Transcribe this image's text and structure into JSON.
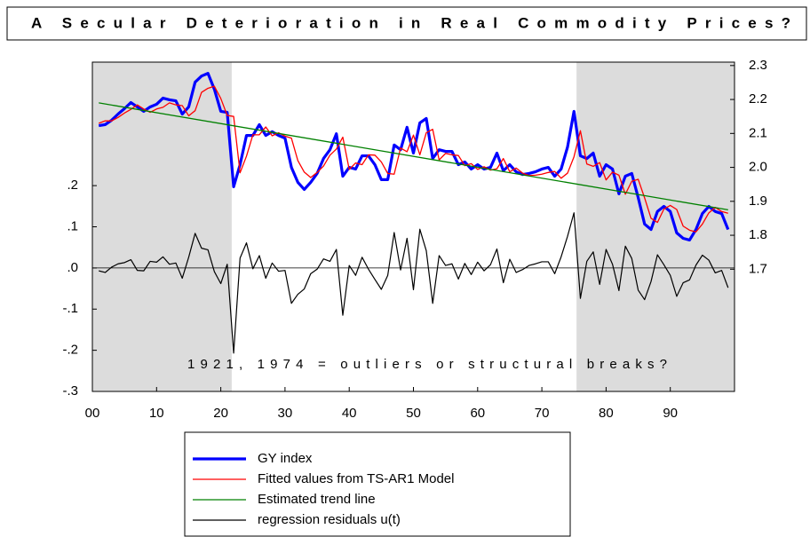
{
  "chart_data": {
    "type": "line",
    "title": "A Secular Deterioration in Real Commodity Prices?",
    "annotation": "1921, 1974 = outliers or structural breaks?",
    "shaded_regions": [
      [
        0,
        21.7
      ],
      [
        75.4,
        100
      ]
    ],
    "shade_color": "#dcdcdc",
    "xlim": [
      0,
      100
    ],
    "xticks": [
      {
        "value": 0,
        "label": "00"
      },
      10,
      20,
      30,
      40,
      50,
      60,
      70,
      80,
      90
    ],
    "ylim": [
      -0.3,
      0.5
    ],
    "yticks": [
      {
        "value": -0.3,
        "label": "-.3"
      },
      {
        "value": -0.2,
        "label": "-.2"
      },
      {
        "value": -0.1,
        "label": "-.1"
      },
      {
        "value": 0,
        "label": ".0"
      },
      {
        "value": 0.1,
        "label": ".1"
      },
      {
        "value": 0.2,
        "label": ".2"
      }
    ],
    "y2lim": [
      1.34,
      2.31
    ],
    "y2ticks": [
      1.7,
      1.8,
      1.9,
      {
        "value": 2,
        "label": "2.0"
      },
      2.1,
      2.2,
      2.3
    ],
    "x": [
      1,
      2,
      3,
      4,
      5,
      6,
      7,
      8,
      9,
      10,
      11,
      12,
      13,
      14,
      15,
      16,
      17,
      18,
      19,
      20,
      21,
      22,
      23,
      24,
      25,
      26,
      27,
      28,
      29,
      30,
      31,
      32,
      33,
      34,
      35,
      36,
      37,
      38,
      39,
      40,
      41,
      42,
      43,
      44,
      45,
      46,
      47,
      48,
      49,
      50,
      51,
      52,
      53,
      54,
      55,
      56,
      57,
      58,
      59,
      60,
      61,
      62,
      63,
      64,
      65,
      66,
      67,
      68,
      69,
      70,
      71,
      72,
      73,
      74,
      75,
      76,
      77,
      78,
      79,
      80,
      81,
      82,
      83,
      84,
      85,
      86,
      87,
      88,
      89,
      90,
      91,
      92,
      93,
      94,
      95,
      96,
      97,
      98,
      99
    ],
    "series": [
      {
        "name": "GY index",
        "color": "#0000ff",
        "width": 3.2,
        "axis": "y2",
        "values": [
          2.123,
          2.126,
          2.139,
          2.157,
          2.173,
          2.191,
          2.178,
          2.165,
          2.178,
          2.186,
          2.204,
          2.199,
          2.196,
          2.157,
          2.178,
          2.251,
          2.269,
          2.277,
          2.23,
          2.165,
          2.162,
          1.943,
          2.008,
          2.094,
          2.094,
          2.126,
          2.094,
          2.105,
          2.094,
          2.086,
          2.0,
          1.956,
          1.935,
          1.956,
          1.982,
          2.026,
          2.052,
          2.099,
          1.974,
          2.0,
          1.995,
          2.034,
          2.034,
          2.008,
          1.964,
          1.964,
          2.066,
          2.052,
          2.118,
          2.042,
          2.131,
          2.144,
          2.026,
          2.052,
          2.047,
          2.047,
          2.008,
          2.016,
          1.995,
          2.008,
          1.995,
          2.0,
          2.042,
          1.99,
          2.008,
          1.987,
          1.979,
          1.982,
          1.987,
          1.995,
          2.0,
          1.974,
          1.995,
          2.06,
          2.165,
          2.034,
          2.026,
          2.042,
          1.974,
          2.008,
          1.995,
          1.922,
          1.974,
          1.982,
          1.911,
          1.833,
          1.817,
          1.87,
          1.885,
          1.87,
          1.807,
          1.791,
          1.786,
          1.817,
          1.864,
          1.885,
          1.87,
          1.864,
          1.817
        ]
      },
      {
        "name": "Fitted values from TS-AR1 Model",
        "color": "#ff0000",
        "width": 1.3,
        "axis": "y2",
        "values": [
          2.13,
          2.137,
          2.137,
          2.147,
          2.16,
          2.171,
          2.184,
          2.172,
          2.162,
          2.172,
          2.177,
          2.19,
          2.184,
          2.182,
          2.152,
          2.167,
          2.221,
          2.233,
          2.239,
          2.203,
          2.153,
          2.15,
          1.984,
          2.033,
          2.096,
          2.096,
          2.119,
          2.093,
          2.102,
          2.092,
          2.086,
          2.02,
          1.986,
          1.97,
          1.985,
          2.004,
          2.036,
          2.054,
          2.089,
          1.994,
          2.013,
          2.008,
          2.037,
          2.036,
          2.016,
          1.982,
          1.98,
          2.057,
          2.046,
          2.095,
          2.037,
          2.102,
          2.112,
          2.022,
          2.041,
          2.037,
          2.035,
          2.005,
          2.011,
          1.994,
          2.002,
          1.992,
          1.996,
          2.026,
          1.987,
          1.998,
          1.983,
          1.976,
          1.977,
          1.98,
          1.985,
          1.988,
          1.968,
          1.983,
          2.031,
          2.108,
          2.01,
          2.003,
          2.014,
          1.963,
          1.986,
          1.977,
          1.921,
          1.959,
          1.965,
          1.91,
          1.85,
          1.838,
          1.877,
          1.888,
          1.876,
          1.827,
          1.815,
          1.81,
          1.833,
          1.866,
          1.882,
          1.87,
          1.865
        ]
      },
      {
        "name": "Estimated trend line",
        "color": "#008000",
        "width": 1.3,
        "axis": "y2",
        "x": [
          1,
          99
        ],
        "values": [
          2.19,
          1.875
        ]
      },
      {
        "name": "regression residuals u(t)",
        "color": "#000000",
        "width": 1.2,
        "axis": "y",
        "values": [
          -0.007,
          -0.011,
          0.002,
          0.01,
          0.013,
          0.02,
          -0.006,
          -0.007,
          0.016,
          0.014,
          0.027,
          0.009,
          0.012,
          -0.025,
          0.026,
          0.084,
          0.048,
          0.044,
          -0.009,
          -0.038,
          0.009,
          -0.207,
          0.024,
          0.061,
          -0.002,
          0.03,
          -0.025,
          0.012,
          -0.008,
          -0.006,
          -0.086,
          -0.064,
          -0.051,
          -0.014,
          -0.003,
          0.022,
          0.016,
          0.045,
          -0.115,
          0.006,
          -0.018,
          0.026,
          -0.003,
          -0.028,
          -0.052,
          -0.018,
          0.086,
          -0.005,
          0.072,
          -0.053,
          0.094,
          0.042,
          -0.086,
          0.03,
          0.006,
          0.01,
          -0.027,
          0.011,
          -0.016,
          0.014,
          -0.007,
          0.008,
          0.046,
          -0.036,
          0.021,
          -0.011,
          -0.004,
          0.006,
          0.01,
          0.015,
          0.015,
          -0.014,
          0.027,
          0.077,
          0.134,
          -0.074,
          0.016,
          0.039,
          -0.04,
          0.045,
          0.009,
          -0.055,
          0.053,
          0.023,
          -0.054,
          -0.077,
          -0.033,
          0.032,
          0.008,
          -0.018,
          -0.069,
          -0.036,
          -0.029,
          0.007,
          0.031,
          0.019,
          -0.012,
          -0.006,
          -0.048
        ]
      }
    ]
  }
}
